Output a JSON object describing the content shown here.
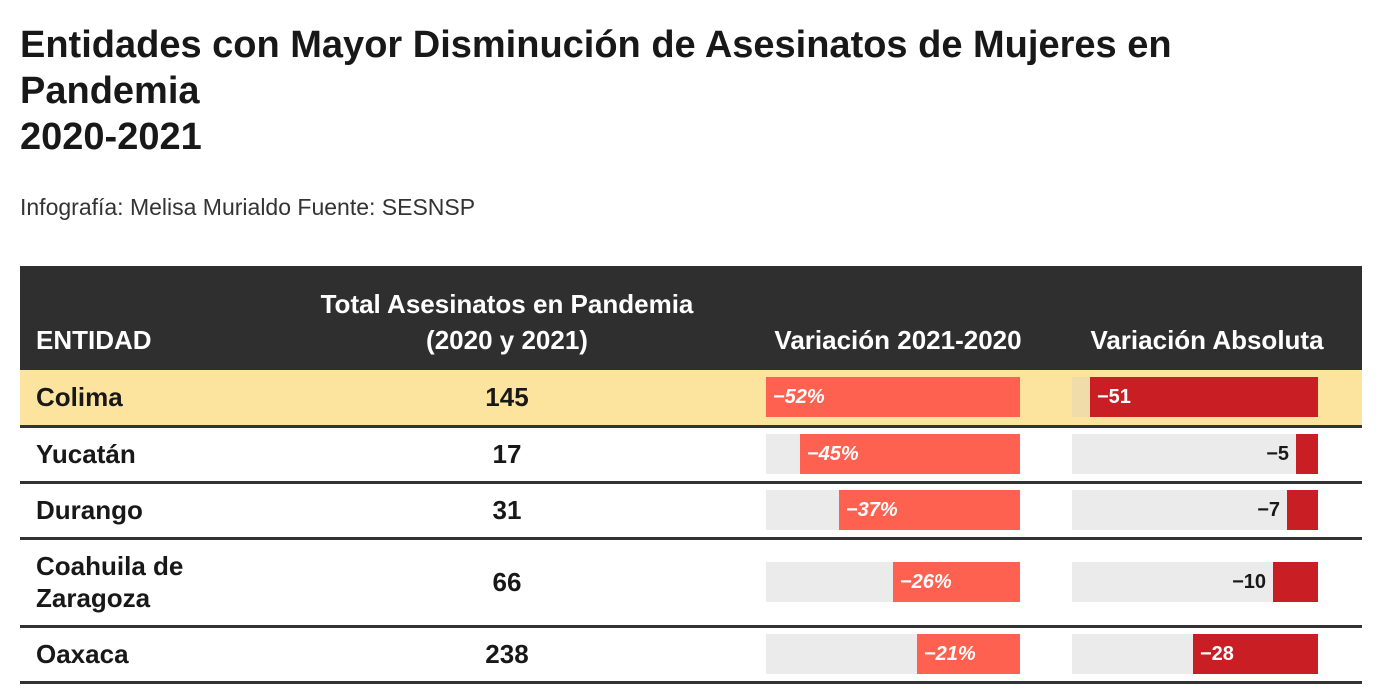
{
  "title": "Entidades con Mayor Disminución de Asesinatos de Mujeres en Pandemia\n2020-2021",
  "subtitle": "Infografía: Melisa Murialdo Fuente: SESNSP",
  "colors": {
    "header_bg": "#2f2f2f",
    "highlight_row": "#fde49e",
    "pct_bar": "#ff6150",
    "abs_bar": "#c91f24",
    "track": "#ebebeb"
  },
  "chart_data": {
    "type": "table",
    "columns": [
      "ENTIDAD",
      "Total Asesinatos en Pandemia (2020 y 2021)",
      "Variación 2021-2020",
      "Variación Absoluta"
    ],
    "rows": [
      {
        "entidad": "Colima",
        "total": "145",
        "variacion_pct": -52,
        "variacion_pct_label": "−52%",
        "variacion_abs": -51,
        "variacion_abs_label": "−51",
        "highlight": true
      },
      {
        "entidad": "Yucatán",
        "total": "17",
        "variacion_pct": -45,
        "variacion_pct_label": "−45%",
        "variacion_abs": -5,
        "variacion_abs_label": "−5",
        "highlight": false
      },
      {
        "entidad": "Durango",
        "total": "31",
        "variacion_pct": -37,
        "variacion_pct_label": "−37%",
        "variacion_abs": -7,
        "variacion_abs_label": "−7",
        "highlight": false
      },
      {
        "entidad": "Coahuila de Zaragoza",
        "total": "66",
        "variacion_pct": -26,
        "variacion_pct_label": "−26%",
        "variacion_abs": -10,
        "variacion_abs_label": "−10",
        "highlight": false
      },
      {
        "entidad": "Oaxaca",
        "total": "238",
        "variacion_pct": -21,
        "variacion_pct_label": "−21%",
        "variacion_abs": -28,
        "variacion_abs_label": "−28",
        "highlight": false
      }
    ],
    "pct_range": [
      -52,
      0
    ],
    "abs_range": [
      -55,
      0
    ]
  }
}
